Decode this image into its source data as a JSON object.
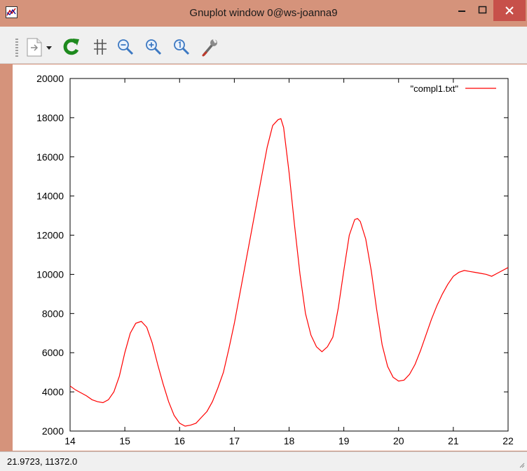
{
  "window": {
    "title": "Gnuplot window 0@ws-joanna9",
    "minimize_icon": "minimize-icon",
    "maximize_icon": "maximize-icon",
    "close_icon": "close-icon"
  },
  "toolbar": {
    "icons": [
      "copy-print-dropdown-icon",
      "replot-icon",
      "grid-icon",
      "zoom-out-icon",
      "zoom-in-icon",
      "zoom-reset-icon",
      "options-wrench-icon"
    ]
  },
  "status": {
    "coordinates": "21.9723,  11372.0"
  },
  "colors": {
    "titlebar": "#d5937b",
    "close": "#c7504a",
    "series": "#ff0000"
  },
  "chart_data": {
    "type": "line",
    "title": "",
    "xlabel": "",
    "ylabel": "",
    "xlim": [
      14,
      22
    ],
    "ylim": [
      2000,
      20000
    ],
    "x_ticks": [
      14,
      15,
      16,
      17,
      18,
      19,
      20,
      21,
      22
    ],
    "y_ticks": [
      2000,
      4000,
      6000,
      8000,
      10000,
      12000,
      14000,
      16000,
      18000,
      20000
    ],
    "x_tick_labels": [
      "14",
      "15",
      "16",
      "17",
      "18",
      "19",
      "20",
      "21",
      "22"
    ],
    "y_tick_labels": [
      "2000",
      "4000",
      "6000",
      "8000",
      "10000",
      "12000",
      "14000",
      "16000",
      "18000",
      "20000"
    ],
    "grid": false,
    "legend": "top-right",
    "series": [
      {
        "name": "\"compl1.txt\"",
        "x": [
          14.0,
          14.1,
          14.2,
          14.3,
          14.4,
          14.5,
          14.6,
          14.7,
          14.8,
          14.9,
          15.0,
          15.1,
          15.2,
          15.3,
          15.4,
          15.5,
          15.6,
          15.7,
          15.8,
          15.9,
          16.0,
          16.1,
          16.2,
          16.3,
          16.4,
          16.5,
          16.6,
          16.7,
          16.8,
          16.9,
          17.0,
          17.1,
          17.2,
          17.3,
          17.4,
          17.5,
          17.6,
          17.7,
          17.8,
          17.85,
          17.9,
          18.0,
          18.1,
          18.2,
          18.3,
          18.4,
          18.5,
          18.6,
          18.7,
          18.8,
          18.9,
          19.0,
          19.1,
          19.2,
          19.25,
          19.3,
          19.4,
          19.5,
          19.6,
          19.7,
          19.8,
          19.9,
          20.0,
          20.1,
          20.2,
          20.3,
          20.4,
          20.5,
          20.6,
          20.7,
          20.8,
          20.9,
          21.0,
          21.1,
          21.2,
          21.3,
          21.4,
          21.5,
          21.6,
          21.7,
          21.8,
          21.9,
          22.0
        ],
        "y": [
          4300,
          4100,
          3950,
          3800,
          3600,
          3500,
          3450,
          3600,
          4000,
          4800,
          6000,
          7000,
          7500,
          7600,
          7300,
          6500,
          5400,
          4400,
          3500,
          2800,
          2400,
          2250,
          2300,
          2400,
          2700,
          3000,
          3500,
          4200,
          5000,
          6200,
          7500,
          9000,
          10500,
          12000,
          13500,
          15000,
          16500,
          17600,
          17900,
          17950,
          17500,
          15200,
          12500,
          10000,
          8000,
          6900,
          6300,
          6050,
          6300,
          6800,
          8300,
          10200,
          12000,
          12800,
          12850,
          12700,
          11800,
          10200,
          8200,
          6400,
          5300,
          4750,
          4550,
          4600,
          4900,
          5400,
          6100,
          6900,
          7700,
          8400,
          9000,
          9500,
          9900,
          10100,
          10200,
          10150,
          10100,
          10050,
          10000,
          9900,
          10050,
          10200,
          10350
        ]
      }
    ]
  }
}
